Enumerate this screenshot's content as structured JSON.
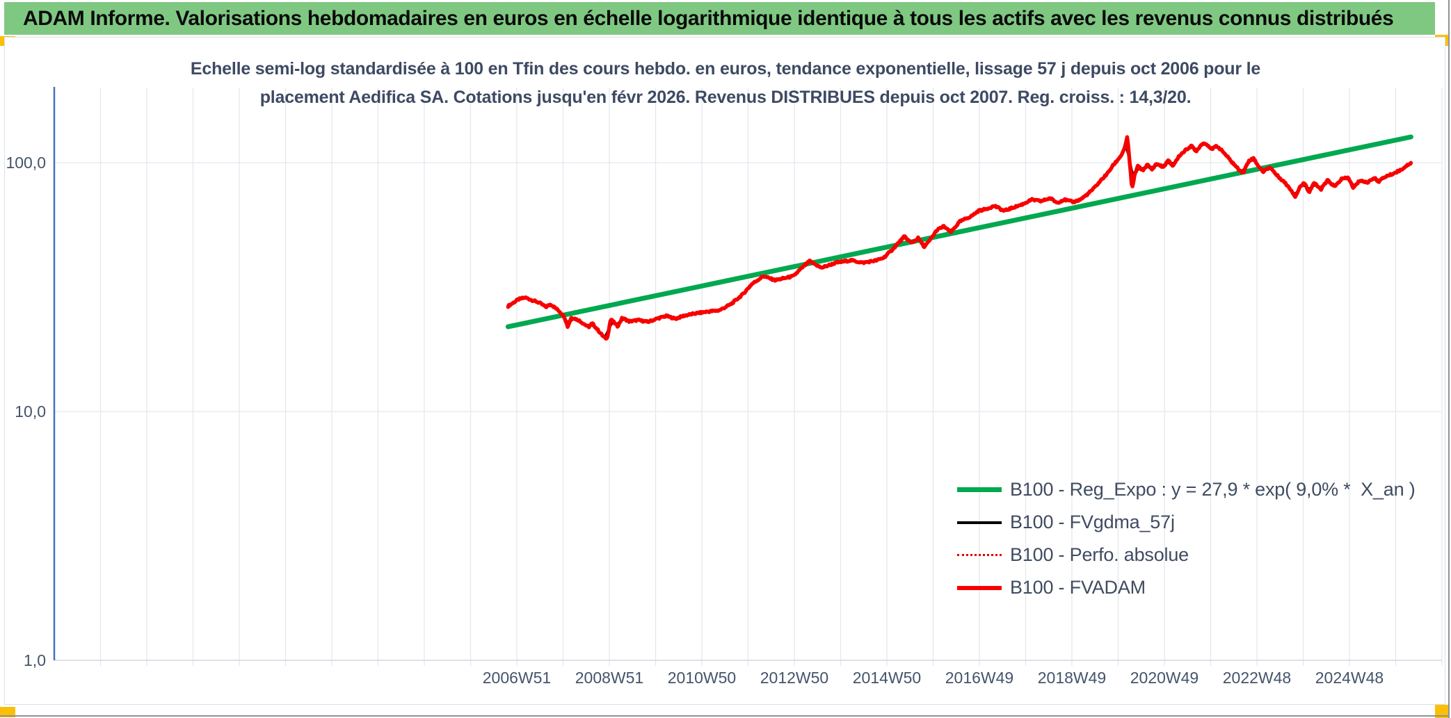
{
  "window": {
    "title_banner": "ADAM Informe. Valorisations hebdomadaires en euros en échelle logarithmique identique à tous les actifs avec les revenus connus distribués",
    "banner_color": "#7FC882",
    "corner_marker_color": "#FCBF05"
  },
  "subtitle": {
    "line1": "Echelle semi-log standardisée à 100 en Tfin des cours hebdo. en euros, tendance exponentielle, lissage 57 j depuis oct 2006 pour le",
    "line2": "placement Aedifica SA. Cotations jusqu'en févr 2026. Revenus DISTRIBUES depuis oct 2007. Reg. croiss. : 14,3/20."
  },
  "legend": {
    "items": [
      {
        "label": "B100 - Reg_Expo : y = 27,9 * exp( 9,0% *  X_an )"
      },
      {
        "label": "B100 - FVgdma_57j"
      },
      {
        "label": "B100 - Perfo. absolue"
      },
      {
        "label": "B100 - FVADAM"
      }
    ]
  },
  "chart_data": {
    "type": "line",
    "title": "Echelle semi-log standardisée à 100 en Tfin des cours hebdo. en euros, tendance exponentielle, lissage 57 j depuis oct 2006 pour le placement Aedifica SA. Cotations jusqu'en févr 2026. Revenus DISTRIBUES depuis oct 2007. Reg. croiss. : 14,3/20.",
    "grid": true,
    "legend_position": "inside-right-bottom",
    "y_axis": {
      "scale": "log",
      "min": 1,
      "max": 200,
      "axis_color": "#4472C4",
      "ticks": [
        {
          "value": 100,
          "label": "100,0"
        },
        {
          "value": 10,
          "label": "10,0"
        },
        {
          "value": 1,
          "label": "1,0"
        }
      ]
    },
    "x_axis": {
      "start_year": 1996.97,
      "end_year": 2026.97,
      "gridline_every_years": 1,
      "ticks": [
        {
          "year": 2006.97,
          "label": "2006W51"
        },
        {
          "year": 2008.97,
          "label": "2008W51"
        },
        {
          "year": 2010.97,
          "label": "2010W50"
        },
        {
          "year": 2012.97,
          "label": "2012W50"
        },
        {
          "year": 2014.97,
          "label": "2014W50"
        },
        {
          "year": 2016.97,
          "label": "2016W49"
        },
        {
          "year": 2018.97,
          "label": "2018W49"
        },
        {
          "year": 2020.97,
          "label": "2020W49"
        },
        {
          "year": 2022.97,
          "label": "2022W48"
        },
        {
          "year": 2024.97,
          "label": "2024W48"
        }
      ]
    },
    "series": [
      {
        "name": "B100 - Reg_Expo : y = 27,9 * exp( 9,0% *  X_an )",
        "type": "trend",
        "color": "#00A84F",
        "width": 7,
        "formula": {
          "base": 27.9,
          "rate": 0.09,
          "ref_year": 2009.47
        },
        "start_year": 2006.78,
        "end_year": 2026.3
      },
      {
        "name": "B100 - FVgdma_57j",
        "type": "smoothed",
        "color": "#000000",
        "width": 3.5,
        "window_weeks": 9
      },
      {
        "name": "B100 - Perfo. absolue",
        "type": "dotted-overlay",
        "color": "#E00000",
        "width": 2,
        "dash": "2 5"
      },
      {
        "name": "B100 - FVADAM",
        "type": "main",
        "color": "#F80000",
        "width": 5.5,
        "points": [
          [
            2006.78,
            26.5
          ],
          [
            2006.9,
            27.4
          ],
          [
            2007.0,
            28.2
          ],
          [
            2007.15,
            28.7
          ],
          [
            2007.3,
            28.0
          ],
          [
            2007.45,
            27.4
          ],
          [
            2007.6,
            26.3
          ],
          [
            2007.7,
            27.0
          ],
          [
            2007.9,
            25.2
          ],
          [
            2008.0,
            24.0
          ],
          [
            2008.07,
            21.9
          ],
          [
            2008.15,
            23.9
          ],
          [
            2008.3,
            23.3
          ],
          [
            2008.45,
            22.3
          ],
          [
            2008.52,
            21.8
          ],
          [
            2008.6,
            22.6
          ],
          [
            2008.7,
            21.5
          ],
          [
            2008.85,
            19.9
          ],
          [
            2008.92,
            19.6
          ],
          [
            2009.0,
            23.5
          ],
          [
            2009.15,
            22.0
          ],
          [
            2009.25,
            23.8
          ],
          [
            2009.4,
            23.0
          ],
          [
            2009.6,
            23.3
          ],
          [
            2009.8,
            22.9
          ],
          [
            2010.0,
            23.6
          ],
          [
            2010.2,
            24.2
          ],
          [
            2010.4,
            23.6
          ],
          [
            2010.6,
            24.3
          ],
          [
            2010.85,
            24.8
          ],
          [
            2011.1,
            25.2
          ],
          [
            2011.35,
            25.5
          ],
          [
            2011.6,
            27.0
          ],
          [
            2011.85,
            29.5
          ],
          [
            2012.05,
            32.5
          ],
          [
            2012.3,
            35.0
          ],
          [
            2012.55,
            33.7
          ],
          [
            2012.75,
            34.3
          ],
          [
            2012.95,
            35.0
          ],
          [
            2013.15,
            38.0
          ],
          [
            2013.3,
            40.2
          ],
          [
            2013.55,
            37.8
          ],
          [
            2013.7,
            38.6
          ],
          [
            2013.85,
            39.5
          ],
          [
            2014.0,
            40.0
          ],
          [
            2014.2,
            40.5
          ],
          [
            2014.45,
            39.6
          ],
          [
            2014.75,
            40.5
          ],
          [
            2014.9,
            41.5
          ],
          [
            2015.05,
            44.0
          ],
          [
            2015.35,
            50.5
          ],
          [
            2015.5,
            47.5
          ],
          [
            2015.65,
            49.8
          ],
          [
            2015.78,
            45.8
          ],
          [
            2015.9,
            48.8
          ],
          [
            2016.05,
            53.5
          ],
          [
            2016.2,
            55.5
          ],
          [
            2016.35,
            52.5
          ],
          [
            2016.55,
            58.0
          ],
          [
            2016.8,
            61.0
          ],
          [
            2016.95,
            64.0
          ],
          [
            2017.1,
            65.0
          ],
          [
            2017.3,
            67.0
          ],
          [
            2017.5,
            64.0
          ],
          [
            2017.7,
            66.0
          ],
          [
            2017.9,
            68.0
          ],
          [
            2018.1,
            71.0
          ],
          [
            2018.3,
            70.0
          ],
          [
            2018.5,
            72.0
          ],
          [
            2018.65,
            69.0
          ],
          [
            2018.8,
            71.0
          ],
          [
            2019.0,
            69.5
          ],
          [
            2019.15,
            71.0
          ],
          [
            2019.3,
            74.5
          ],
          [
            2019.45,
            79.0
          ],
          [
            2019.6,
            85.0
          ],
          [
            2019.75,
            91.0
          ],
          [
            2019.85,
            97.0
          ],
          [
            2019.95,
            102.0
          ],
          [
            2020.05,
            108.0
          ],
          [
            2020.12,
            116.0
          ],
          [
            2020.17,
            127.0
          ],
          [
            2020.22,
            100.0
          ],
          [
            2020.27,
            78.0
          ],
          [
            2020.33,
            90.0
          ],
          [
            2020.4,
            97.0
          ],
          [
            2020.5,
            93.0
          ],
          [
            2020.6,
            98.0
          ],
          [
            2020.7,
            94.0
          ],
          [
            2020.8,
            99.0
          ],
          [
            2020.95,
            96.0
          ],
          [
            2021.05,
            102.0
          ],
          [
            2021.15,
            97.0
          ],
          [
            2021.3,
            107.0
          ],
          [
            2021.45,
            113.0
          ],
          [
            2021.55,
            117.0
          ],
          [
            2021.65,
            111.0
          ],
          [
            2021.8,
            120.0
          ],
          [
            2021.9,
            118.0
          ],
          [
            2022.0,
            113.0
          ],
          [
            2022.1,
            117.0
          ],
          [
            2022.25,
            110.0
          ],
          [
            2022.4,
            102.0
          ],
          [
            2022.55,
            95.0
          ],
          [
            2022.67,
            91.0
          ],
          [
            2022.8,
            102.0
          ],
          [
            2022.9,
            104.0
          ],
          [
            2023.0,
            97.0
          ],
          [
            2023.1,
            92.0
          ],
          [
            2023.25,
            96.0
          ],
          [
            2023.4,
            89.0
          ],
          [
            2023.55,
            84.0
          ],
          [
            2023.7,
            78.0
          ],
          [
            2023.8,
            73.0
          ],
          [
            2023.9,
            80.0
          ],
          [
            2024.0,
            83.0
          ],
          [
            2024.1,
            76.0
          ],
          [
            2024.2,
            83.0
          ],
          [
            2024.35,
            78.0
          ],
          [
            2024.5,
            85.0
          ],
          [
            2024.65,
            80.0
          ],
          [
            2024.8,
            86.0
          ],
          [
            2024.95,
            87.0
          ],
          [
            2025.05,
            79.0
          ],
          [
            2025.2,
            85.0
          ],
          [
            2025.35,
            83.0
          ],
          [
            2025.5,
            87.0
          ],
          [
            2025.6,
            84.0
          ],
          [
            2025.75,
            88.0
          ],
          [
            2025.9,
            90.0
          ],
          [
            2026.0,
            92.0
          ],
          [
            2026.1,
            94.0
          ],
          [
            2026.2,
            97.0
          ],
          [
            2026.3,
            100.0
          ]
        ]
      }
    ],
    "colors": {
      "gridline": "#E4E7ED",
      "bottom_axis": "#D2D7E0",
      "tick_text": "#44546A"
    }
  }
}
